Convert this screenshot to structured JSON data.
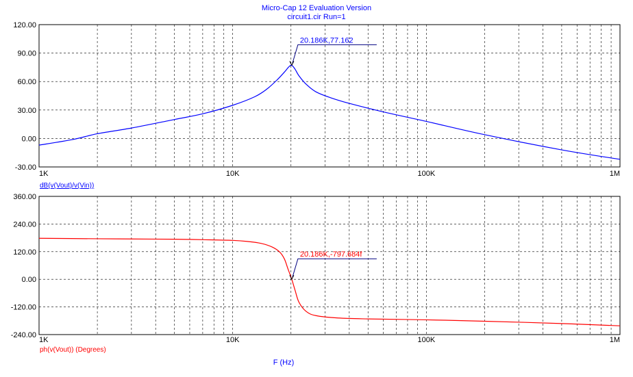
{
  "window": {
    "title": "Micro-Cap 12 Evaluation Version",
    "subtitle": "circuit1.cir Run=1"
  },
  "chart_data": [
    {
      "type": "line",
      "xscale": "log",
      "xlim": [
        1000,
        1000000
      ],
      "x_tick_labels": [
        "1K",
        "10K",
        "100K",
        "1M"
      ],
      "ylim": [
        -30,
        120
      ],
      "y_tick_labels": [
        "120.00",
        "90.00",
        "60.00",
        "30.00",
        "0.00",
        "-30.00"
      ],
      "ylabel": "dB(v(Vout)/v(Vin))",
      "grid": true,
      "color": "#0000ff",
      "series": [
        {
          "x": [
            1000,
            1500,
            2000,
            3000,
            5000,
            7000,
            10000,
            13000,
            15000,
            17000,
            18500,
            19500,
            20186,
            21000,
            22000,
            24000,
            27000,
            32000,
            40000,
            60000,
            100000,
            200000,
            500000,
            1000000
          ],
          "y": [
            -7,
            -1,
            5,
            11,
            20,
            26,
            35,
            44,
            52,
            62,
            70,
            75.5,
            77.162,
            73,
            66,
            57,
            49,
            43,
            37,
            28,
            18,
            4,
            -12,
            -22
          ]
        }
      ],
      "annotations": [
        {
          "text": "20.186K,77.162",
          "x": 20186,
          "y": 77.162
        }
      ]
    },
    {
      "type": "line",
      "xscale": "log",
      "xlim": [
        1000,
        1000000
      ],
      "x_tick_labels": [
        "1K",
        "10K",
        "100K",
        "1M"
      ],
      "ylim": [
        -240,
        360
      ],
      "y_tick_labels": [
        "360.00",
        "240.00",
        "120.00",
        "0.00",
        "-120.00",
        "-240.00"
      ],
      "ylabel": "ph(v(Vout)) (Degrees)",
      "xlabel": "F (Hz)",
      "grid": true,
      "color": "#ff0000",
      "series": [
        {
          "x": [
            1000,
            2000,
            3000,
            5000,
            7000,
            10000,
            12000,
            14000,
            16000,
            17500,
            18500,
            19300,
            20186,
            21000,
            22000,
            24000,
            27000,
            35000,
            50000,
            100000,
            200000,
            500000,
            1000000
          ],
          "y": [
            178,
            176,
            175,
            174,
            172,
            169,
            164,
            156,
            140,
            118,
            88,
            45,
            0,
            -48,
            -100,
            -140,
            -158,
            -168,
            -172,
            -176,
            -182,
            -192,
            -202
          ]
        }
      ],
      "annotations": [
        {
          "text": "20.186K,-797.684f",
          "x": 20186,
          "y": 0
        }
      ]
    }
  ]
}
